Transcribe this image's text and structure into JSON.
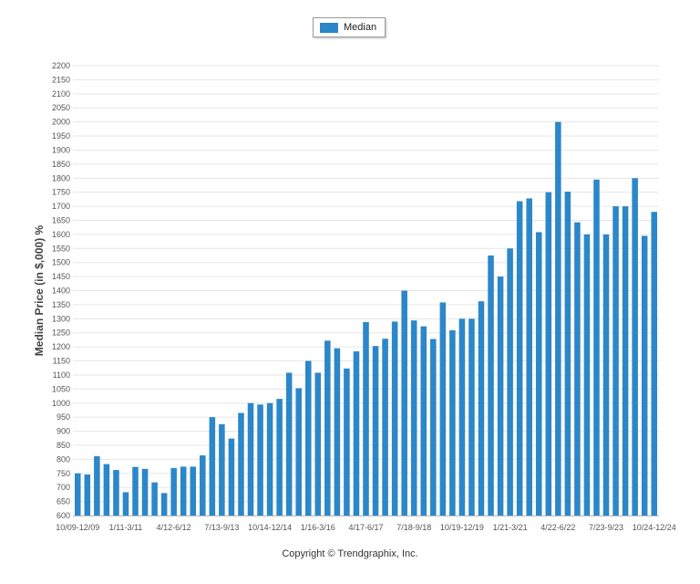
{
  "legend": {
    "label": "Median",
    "color": "#2b87c9"
  },
  "copyright": "Copyright © Trendgraphix, Inc.",
  "chart_data": {
    "type": "bar",
    "ylabel": "Median Price (in $,000) %",
    "ylim": [
      600,
      2200
    ],
    "ytick_step": 50,
    "grid": true,
    "legend_position": "top-center",
    "series": [
      {
        "name": "Median",
        "color": "#2b87c9",
        "values": [
          750,
          746,
          811,
          783,
          762,
          683,
          773,
          766,
          718,
          680,
          769,
          774,
          774,
          814,
          950,
          925,
          874,
          965,
          1000,
          995,
          1000,
          1015,
          1108,
          1053,
          1150,
          1108,
          1222,
          1195,
          1123,
          1184,
          1288,
          1203,
          1229,
          1290,
          1400,
          1294,
          1273,
          1228,
          1358,
          1259,
          1300,
          1300,
          1362,
          1525,
          1450,
          1550,
          1718,
          1728,
          1608,
          1750,
          2000,
          1752,
          1643,
          1600,
          1795,
          1600,
          1700,
          1700,
          1800,
          1595,
          1680
        ]
      }
    ],
    "x_tick_labels": [
      {
        "index": 0,
        "label": "10/09-12/09"
      },
      {
        "index": 5,
        "label": "1/11-3/11"
      },
      {
        "index": 10,
        "label": "4/12-6/12"
      },
      {
        "index": 15,
        "label": "7/13-9/13"
      },
      {
        "index": 20,
        "label": "10/14-12/14"
      },
      {
        "index": 25,
        "label": "1/16-3/16"
      },
      {
        "index": 30,
        "label": "4/17-6/17"
      },
      {
        "index": 35,
        "label": "7/18-9/18"
      },
      {
        "index": 40,
        "label": "10/19-12/19"
      },
      {
        "index": 45,
        "label": "1/21-3/21"
      },
      {
        "index": 50,
        "label": "4/22-6/22"
      },
      {
        "index": 55,
        "label": "7/23-9/23"
      },
      {
        "index": 60,
        "label": "10/24-12/24"
      }
    ]
  }
}
